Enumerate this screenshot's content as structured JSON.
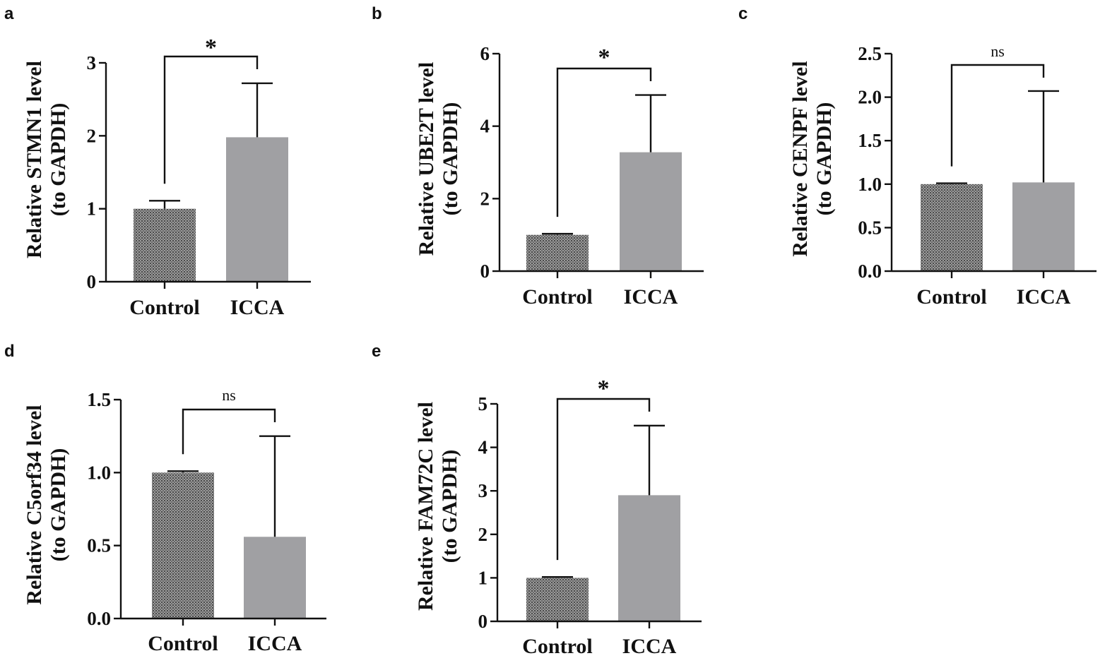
{
  "chart_data": [
    {
      "panel": "a",
      "type": "bar",
      "categories": [
        "Control",
        "ICCA"
      ],
      "values": [
        1.0,
        1.98
      ],
      "errors": [
        0.11,
        0.74
      ],
      "ylabel_line1": "Relative STMN1 level",
      "ylabel_line2": "(to GAPDH)",
      "ylim": [
        0,
        3
      ],
      "yticks": [
        0,
        1,
        2,
        3
      ],
      "ytick_labels": [
        "0",
        "1",
        "2",
        "3"
      ],
      "significance": "*",
      "bar_colors": [
        "#7a7a7a",
        "#a0a0a3"
      ],
      "bar_patterns": [
        "hatch",
        "solid"
      ]
    },
    {
      "panel": "b",
      "type": "bar",
      "categories": [
        "Control",
        "ICCA"
      ],
      "values": [
        1.0,
        3.28
      ],
      "errors": [
        0.03,
        1.58
      ],
      "ylabel_line1": "Relative UBE2T level",
      "ylabel_line2": "(to GAPDH)",
      "ylim": [
        0,
        6
      ],
      "yticks": [
        0,
        2,
        4,
        6
      ],
      "ytick_labels": [
        "0",
        "2",
        "4",
        "6"
      ],
      "significance": "*",
      "bar_colors": [
        "#7a7a7a",
        "#a0a0a3"
      ],
      "bar_patterns": [
        "hatch",
        "solid"
      ]
    },
    {
      "panel": "c",
      "type": "bar",
      "categories": [
        "Control",
        "ICCA"
      ],
      "values": [
        1.0,
        1.02
      ],
      "errors": [
        0.01,
        1.05
      ],
      "ylabel_line1": "Relative CENPF level",
      "ylabel_line2": "(to GAPDH)",
      "ylim": [
        0,
        2.5
      ],
      "yticks": [
        0,
        0.5,
        1.0,
        1.5,
        2.0,
        2.5
      ],
      "ytick_labels": [
        "0.0",
        "0.5",
        "1.0",
        "1.5",
        "2.0",
        "2.5"
      ],
      "significance": "ns",
      "bar_colors": [
        "#7a7a7a",
        "#a0a0a3"
      ],
      "bar_patterns": [
        "hatch",
        "solid"
      ]
    },
    {
      "panel": "d",
      "type": "bar",
      "categories": [
        "Control",
        "ICCA"
      ],
      "values": [
        1.0,
        0.56
      ],
      "errors": [
        0.01,
        0.69
      ],
      "ylabel_line1": "Relative C5orf34  level",
      "ylabel_line2": "(to GAPDH)",
      "ylim": [
        0,
        1.5
      ],
      "yticks": [
        0,
        0.5,
        1.0,
        1.5
      ],
      "ytick_labels": [
        "0.0",
        "0.5",
        "1.0",
        "1.5"
      ],
      "significance": "ns",
      "bar_colors": [
        "#7a7a7a",
        "#a0a0a3"
      ],
      "bar_patterns": [
        "hatch",
        "solid"
      ]
    },
    {
      "panel": "e",
      "type": "bar",
      "categories": [
        "Control",
        "ICCA"
      ],
      "values": [
        1.0,
        2.9
      ],
      "errors": [
        0.02,
        1.6
      ],
      "ylabel_line1": "Relative FAM72C level",
      "ylabel_line2": "(to GAPDH)",
      "ylim": [
        0,
        5
      ],
      "yticks": [
        0,
        1,
        2,
        3,
        4,
        5
      ],
      "ytick_labels": [
        "0",
        "1",
        "2",
        "3",
        "4",
        "5"
      ],
      "significance": "*",
      "bar_colors": [
        "#7a7a7a",
        "#a0a0a3"
      ],
      "bar_patterns": [
        "hatch",
        "solid"
      ]
    }
  ]
}
